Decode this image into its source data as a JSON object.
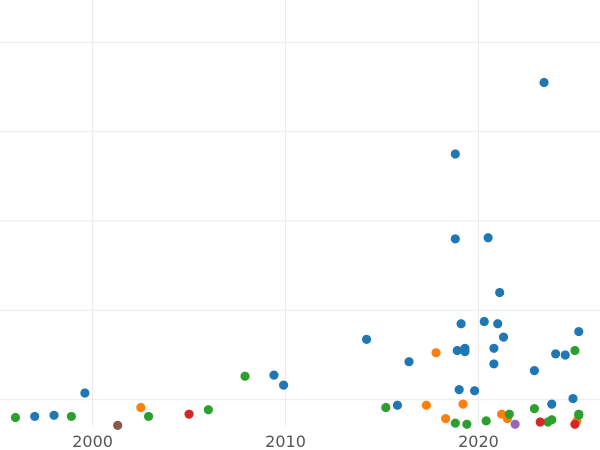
{
  "chart_data": {
    "type": "scatter",
    "title": "",
    "xlabel": "",
    "ylabel": "",
    "xlim": [
      1995.2,
      2026.3
    ],
    "ylim": [
      0,
      205
    ],
    "grid": true,
    "x_ticks": [
      2000,
      2010,
      2020
    ],
    "x_tick_labels": [
      "2000",
      "2010",
      "2020"
    ],
    "y_ticks": [
      10,
      50,
      90,
      130,
      170
    ],
    "colors": {
      "blue": "#1f77b4",
      "orange": "#ff7f0e",
      "green": "#2ca02c",
      "red": "#d62728",
      "purple": "#9467bd",
      "brown": "#8c564b"
    },
    "series": [
      {
        "color": "#1f77b4",
        "points": [
          [
            1997.0,
            2.5
          ],
          [
            1998.0,
            3.0
          ],
          [
            1999.6,
            13.0
          ],
          [
            2009.4,
            21.0
          ],
          [
            2009.9,
            16.5
          ],
          [
            2014.2,
            37.0
          ],
          [
            2015.8,
            7.5
          ],
          [
            2016.4,
            27.0
          ],
          [
            2018.8,
            120.0
          ],
          [
            2018.8,
            82.0
          ],
          [
            2018.9,
            32.0
          ],
          [
            2019.0,
            14.5
          ],
          [
            2019.1,
            44.0
          ],
          [
            2019.3,
            33.0
          ],
          [
            2019.3,
            31.5
          ],
          [
            2019.8,
            14.0
          ],
          [
            2020.3,
            45.0
          ],
          [
            2020.5,
            82.5
          ],
          [
            2020.8,
            33.0
          ],
          [
            2020.8,
            26.0
          ],
          [
            2021.0,
            44.0
          ],
          [
            2021.1,
            58.0
          ],
          [
            2021.3,
            38.0
          ],
          [
            2022.9,
            23.0
          ],
          [
            2023.4,
            152.0
          ],
          [
            2023.8,
            8.0
          ],
          [
            2024.0,
            30.5
          ],
          [
            2024.5,
            30.0
          ],
          [
            2024.9,
            10.5
          ],
          [
            2025.2,
            40.5
          ]
        ]
      },
      {
        "color": "#ff7f0e",
        "points": [
          [
            2002.5,
            6.5
          ],
          [
            2017.3,
            7.5
          ],
          [
            2017.8,
            31.0
          ],
          [
            2018.3,
            1.5
          ],
          [
            2019.2,
            8.0
          ],
          [
            2021.2,
            3.5
          ],
          [
            2021.5,
            1.5
          ],
          [
            2025.1,
            0.5
          ]
        ]
      },
      {
        "color": "#2ca02c",
        "points": [
          [
            1996.0,
            2.0
          ],
          [
            1998.9,
            2.5
          ],
          [
            2002.9,
            2.5
          ],
          [
            2006.0,
            5.5
          ],
          [
            2007.9,
            20.5
          ],
          [
            2015.2,
            6.5
          ],
          [
            2018.8,
            -0.5
          ],
          [
            2019.4,
            -1.0
          ],
          [
            2020.4,
            0.5
          ],
          [
            2021.6,
            3.5
          ],
          [
            2022.9,
            6.0
          ],
          [
            2023.6,
            0.0
          ],
          [
            2023.8,
            1.0
          ],
          [
            2025.0,
            32.0
          ],
          [
            2025.2,
            3.0
          ],
          [
            2025.2,
            3.5
          ]
        ]
      },
      {
        "color": "#d62728",
        "points": [
          [
            2005.0,
            3.5
          ],
          [
            2023.2,
            0.0
          ],
          [
            2025.0,
            -1.0
          ]
        ]
      },
      {
        "color": "#9467bd",
        "points": [
          [
            2021.9,
            -1.0
          ]
        ]
      },
      {
        "color": "#8c564b",
        "points": [
          [
            2001.3,
            -1.5
          ]
        ]
      }
    ]
  }
}
